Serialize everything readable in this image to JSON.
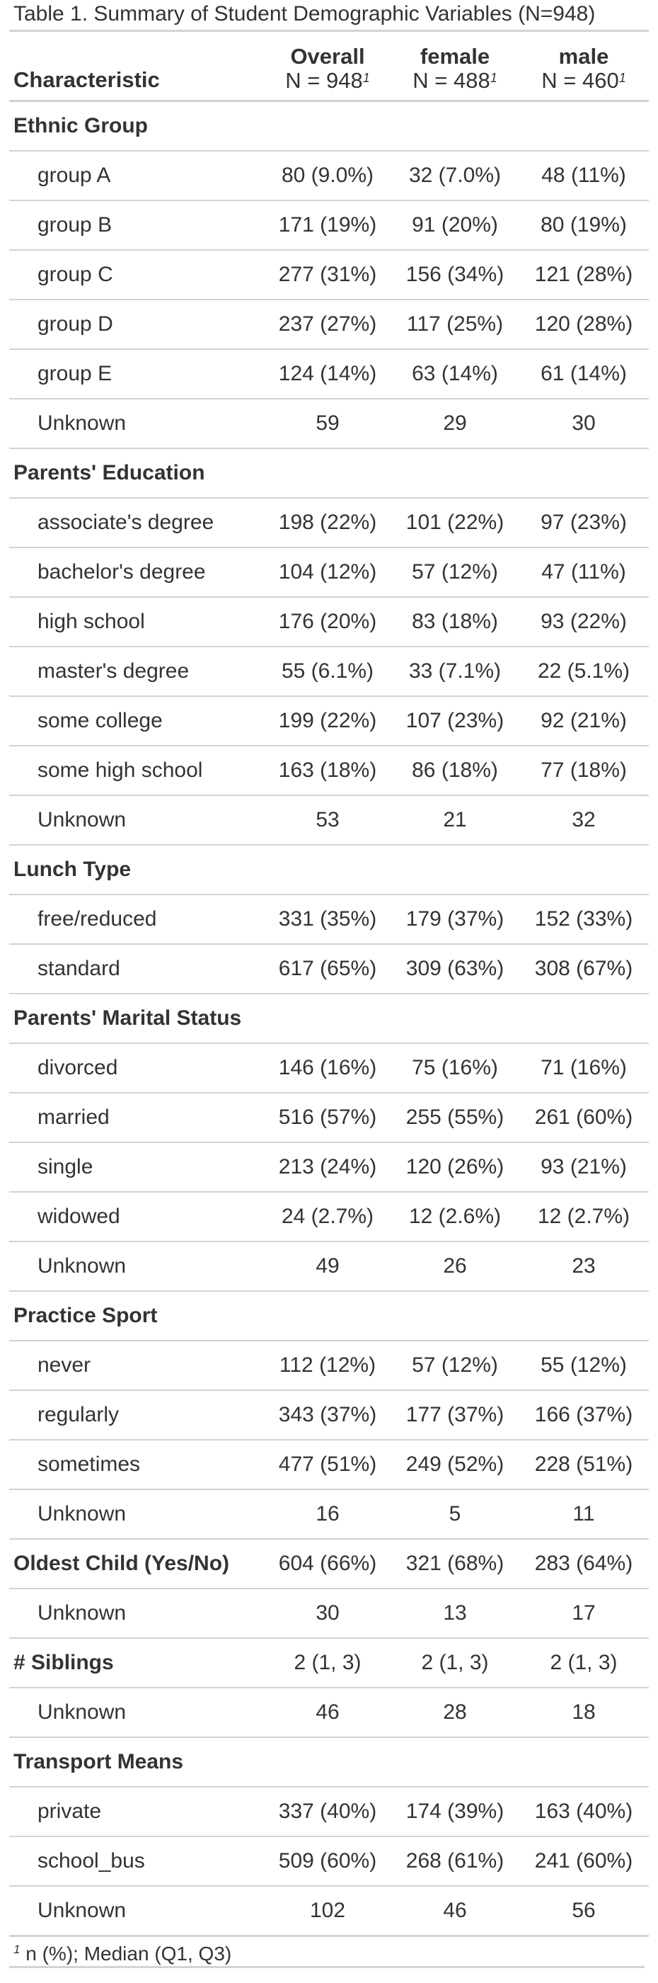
{
  "caption": "Table 1. Summary of Student Demographic Variables (N=948)",
  "header": {
    "characteristic": "Characteristic",
    "columns": [
      {
        "name": "Overall",
        "n": "N = 948",
        "mark": "1"
      },
      {
        "name": "female",
        "n": "N = 488",
        "mark": "1"
      },
      {
        "name": "male",
        "n": "N = 460",
        "mark": "1"
      }
    ]
  },
  "rows": [
    {
      "label": "Ethnic Group",
      "kind": "group",
      "values": [
        "",
        "",
        ""
      ]
    },
    {
      "label": "group A",
      "kind": "level",
      "values": [
        "80 (9.0%)",
        "32 (7.0%)",
        "48 (11%)"
      ]
    },
    {
      "label": "group B",
      "kind": "level",
      "values": [
        "171 (19%)",
        "91 (20%)",
        "80 (19%)"
      ]
    },
    {
      "label": "group C",
      "kind": "level",
      "values": [
        "277 (31%)",
        "156 (34%)",
        "121 (28%)"
      ]
    },
    {
      "label": "group D",
      "kind": "level",
      "values": [
        "237 (27%)",
        "117 (25%)",
        "120 (28%)"
      ]
    },
    {
      "label": "group E",
      "kind": "level",
      "values": [
        "124 (14%)",
        "63 (14%)",
        "61 (14%)"
      ]
    },
    {
      "label": "Unknown",
      "kind": "level",
      "values": [
        "59",
        "29",
        "30"
      ]
    },
    {
      "label": "Parents' Education",
      "kind": "group",
      "values": [
        "",
        "",
        ""
      ]
    },
    {
      "label": "associate's degree",
      "kind": "level",
      "values": [
        "198 (22%)",
        "101 (22%)",
        "97 (23%)"
      ]
    },
    {
      "label": "bachelor's degree",
      "kind": "level",
      "values": [
        "104 (12%)",
        "57 (12%)",
        "47 (11%)"
      ]
    },
    {
      "label": "high school",
      "kind": "level",
      "values": [
        "176 (20%)",
        "83 (18%)",
        "93 (22%)"
      ]
    },
    {
      "label": "master's degree",
      "kind": "level",
      "values": [
        "55 (6.1%)",
        "33 (7.1%)",
        "22 (5.1%)"
      ]
    },
    {
      "label": "some college",
      "kind": "level",
      "values": [
        "199 (22%)",
        "107 (23%)",
        "92 (21%)"
      ]
    },
    {
      "label": "some high school",
      "kind": "level",
      "values": [
        "163 (18%)",
        "86 (18%)",
        "77 (18%)"
      ]
    },
    {
      "label": "Unknown",
      "kind": "level",
      "values": [
        "53",
        "21",
        "32"
      ]
    },
    {
      "label": "Lunch Type",
      "kind": "group",
      "values": [
        "",
        "",
        ""
      ]
    },
    {
      "label": "free/reduced",
      "kind": "level",
      "values": [
        "331 (35%)",
        "179 (37%)",
        "152 (33%)"
      ]
    },
    {
      "label": "standard",
      "kind": "level",
      "values": [
        "617 (65%)",
        "309 (63%)",
        "308 (67%)"
      ]
    },
    {
      "label": "Parents' Marital Status",
      "kind": "group",
      "values": [
        "",
        "",
        ""
      ]
    },
    {
      "label": "divorced",
      "kind": "level",
      "values": [
        "146 (16%)",
        "75 (16%)",
        "71 (16%)"
      ]
    },
    {
      "label": "married",
      "kind": "level",
      "values": [
        "516 (57%)",
        "255 (55%)",
        "261 (60%)"
      ]
    },
    {
      "label": "single",
      "kind": "level",
      "values": [
        "213 (24%)",
        "120 (26%)",
        "93 (21%)"
      ]
    },
    {
      "label": "widowed",
      "kind": "level",
      "values": [
        "24 (2.7%)",
        "12 (2.6%)",
        "12 (2.7%)"
      ]
    },
    {
      "label": "Unknown",
      "kind": "level",
      "values": [
        "49",
        "26",
        "23"
      ]
    },
    {
      "label": "Practice Sport",
      "kind": "group",
      "values": [
        "",
        "",
        ""
      ]
    },
    {
      "label": "never",
      "kind": "level",
      "values": [
        "112 (12%)",
        "57 (12%)",
        "55 (12%)"
      ]
    },
    {
      "label": "regularly",
      "kind": "level",
      "values": [
        "343 (37%)",
        "177 (37%)",
        "166 (37%)"
      ]
    },
    {
      "label": "sometimes",
      "kind": "level",
      "values": [
        "477 (51%)",
        "249 (52%)",
        "228 (51%)"
      ]
    },
    {
      "label": "Unknown",
      "kind": "level",
      "values": [
        "16",
        "5",
        "11"
      ]
    },
    {
      "label": "Oldest Child (Yes/No)",
      "kind": "group",
      "values": [
        "604 (66%)",
        "321 (68%)",
        "283 (64%)"
      ]
    },
    {
      "label": "Unknown",
      "kind": "level",
      "values": [
        "30",
        "13",
        "17"
      ]
    },
    {
      "label": "# Siblings",
      "kind": "group",
      "values": [
        "2 (1, 3)",
        "2 (1, 3)",
        "2 (1, 3)"
      ]
    },
    {
      "label": "Unknown",
      "kind": "level",
      "values": [
        "46",
        "28",
        "18"
      ]
    },
    {
      "label": "Transport Means",
      "kind": "group",
      "values": [
        "",
        "",
        ""
      ]
    },
    {
      "label": "private",
      "kind": "level",
      "values": [
        "337 (40%)",
        "174 (39%)",
        "163 (40%)"
      ]
    },
    {
      "label": "school_bus",
      "kind": "level",
      "values": [
        "509 (60%)",
        "268 (61%)",
        "241 (60%)"
      ]
    },
    {
      "label": "Unknown",
      "kind": "level",
      "values": [
        "102",
        "46",
        "56"
      ]
    }
  ],
  "footnote": {
    "mark": "1",
    "text": "n (%); Median (Q1, Q3)"
  }
}
